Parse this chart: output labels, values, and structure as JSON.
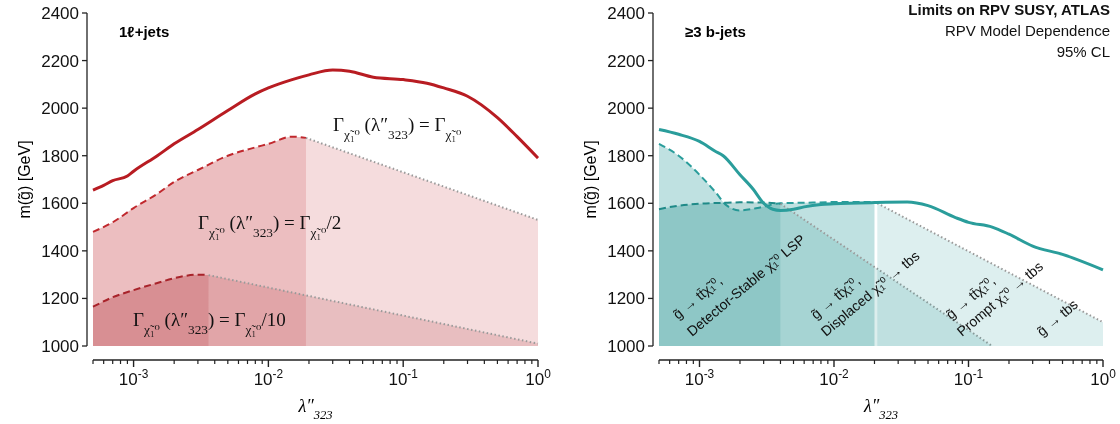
{
  "chart_data": [
    {
      "type": "line",
      "title": "1ℓ+jets",
      "xlabel": "λ″$_{323}$",
      "ylabel": "m(g̃) [GeV]",
      "log": "x",
      "grid": false,
      "xlim": [
        0.0005,
        1
      ],
      "ylim": [
        1000,
        2400
      ],
      "xticks": [
        {
          "value": 0.001,
          "label": "10$^{-3}$"
        },
        {
          "value": 0.01,
          "label": "10$^{-2}$"
        },
        {
          "value": 0.1,
          "label": "10$^{-1}$"
        },
        {
          "value": 1,
          "label": "10$^{0}$"
        }
      ],
      "yticks": [
        1000,
        1200,
        1400,
        1600,
        1800,
        2000,
        2200,
        2400
      ],
      "series": [
        {
          "color": "#b81c22",
          "line_style": "solid",
          "x": [
            0.0005,
            0.0006,
            0.0007,
            0.0009,
            0.001,
            0.0015,
            0.002,
            0.003,
            0.005,
            0.008,
            0.01,
            0.015,
            0.02,
            0.03,
            0.04,
            0.06,
            0.1,
            0.15,
            0.2,
            0.3,
            0.5,
            0.7,
            1
          ],
          "values": [
            1655,
            1675,
            1695,
            1715,
            1735,
            1800,
            1850,
            1910,
            1990,
            2060,
            2085,
            2120,
            2140,
            2160,
            2155,
            2130,
            2120,
            2105,
            2085,
            2050,
            1960,
            1880,
            1790
          ]
        },
        {
          "type": "area",
          "color": "#c0282d",
          "line_style": "dashed",
          "x": [
            0.0005,
            0.0007,
            0.001,
            0.0015,
            0.002,
            0.003,
            0.005,
            0.008,
            0.01,
            0.015,
            0.019
          ],
          "values": [
            1480,
            1520,
            1580,
            1640,
            1690,
            1740,
            1800,
            1835,
            1850,
            1880,
            1875
          ]
        },
        {
          "type": "area",
          "color": "#c0282d",
          "line_style": "dotted",
          "x": [
            0.019,
            1
          ],
          "values": [
            1875,
            1530
          ]
        },
        {
          "type": "area",
          "color": "#a8232a",
          "line_style": "dashed",
          "x": [
            0.0005,
            0.0007,
            0.001,
            0.0015,
            0.002,
            0.003,
            0.0036
          ],
          "values": [
            1165,
            1205,
            1235,
            1265,
            1285,
            1300,
            1298
          ]
        },
        {
          "type": "area",
          "color": "#a8232a",
          "line_style": "dotted",
          "x": [
            0.0036,
            1
          ],
          "values": [
            1298,
            1010
          ]
        }
      ],
      "annotations": [
        "Γ$_{χ̃₁⁰}$ (λ″$_{323}$) = Γ$_{χ̃₁⁰}$",
        "Γ$_{χ̃₁⁰}$ (λ″$_{323}$) = Γ$_{χ̃₁⁰}$/2",
        "Γ$_{χ̃₁⁰}$ (λ″$_{323}$) = Γ$_{χ̃₁⁰}$/10"
      ]
    },
    {
      "type": "line",
      "title": "≥3 b-jets",
      "xlabel": "λ″$_{323}$",
      "ylabel": "m(g̃) [GeV]",
      "log": "x",
      "grid": false,
      "xlim": [
        0.0005,
        1
      ],
      "ylim": [
        1000,
        2400
      ],
      "xticks": [
        {
          "value": 0.001,
          "label": "10$^{-3}$"
        },
        {
          "value": 0.01,
          "label": "10$^{-2}$"
        },
        {
          "value": 0.1,
          "label": "10$^{-1}$"
        },
        {
          "value": 1,
          "label": "10$^{0}$"
        }
      ],
      "yticks": [
        1000,
        1200,
        1400,
        1600,
        1800,
        2000,
        2200,
        2400
      ],
      "series": [
        {
          "type": "area",
          "color": "#2a9d9b",
          "line_style": "dashed",
          "x": [
            0.0005,
            0.0007,
            0.001,
            0.0013,
            0.0016,
            0.002,
            0.0027,
            0.004,
            0.007,
            0.01,
            0.02
          ],
          "values": [
            1850,
            1800,
            1720,
            1650,
            1590,
            1570,
            1580,
            1600,
            1603,
            1605,
            1605
          ]
        },
        {
          "type": "area",
          "color": "#1f8a88",
          "line_style": "dashed",
          "x": [
            0.0005,
            0.0007,
            0.001,
            0.0015,
            0.002,
            0.003,
            0.004
          ],
          "values": [
            1575,
            1590,
            1598,
            1602,
            1604,
            1603,
            1598
          ]
        },
        {
          "type": "area",
          "color": "#26938f",
          "line_style": "dotted",
          "x": [
            0.004,
            0.15
          ],
          "values": [
            1598,
            1000
          ]
        },
        {
          "type": "area",
          "color": "#2a9d9b",
          "line_style": "dotted",
          "x": [
            0.021,
            1
          ],
          "values": [
            1600,
            1100
          ]
        },
        {
          "color": "#2a9d9b",
          "line_style": "solid",
          "x": [
            0.0005,
            0.0007,
            0.001,
            0.0013,
            0.0015,
            0.002,
            0.0025,
            0.003,
            0.0035,
            0.004,
            0.005,
            0.006,
            0.008,
            0.01,
            0.02,
            0.035,
            0.05,
            0.08,
            0.1,
            0.15,
            0.2,
            0.3,
            0.5,
            1
          ],
          "values": [
            1910,
            1890,
            1860,
            1820,
            1800,
            1720,
            1660,
            1600,
            1575,
            1570,
            1575,
            1585,
            1595,
            1598,
            1603,
            1605,
            1590,
            1540,
            1520,
            1500,
            1470,
            1420,
            1385,
            1320
          ]
        }
      ],
      "annotations": [
        "Limits on RPV SUSY, ATLAS",
        "RPV Model Dependence",
        "95% CL",
        "g̃ → tt̄χ̃₁⁰,",
        "Detector-Stable χ̃₁⁰ LSP",
        "g̃ → tt̄χ̃₁⁰,",
        "Displaced χ̃₁⁰ → tbs",
        "g̃ → tt̄χ̃₁⁰,",
        "Prompt χ̃₁⁰ → tbs",
        "g̃ → tbs"
      ]
    }
  ]
}
